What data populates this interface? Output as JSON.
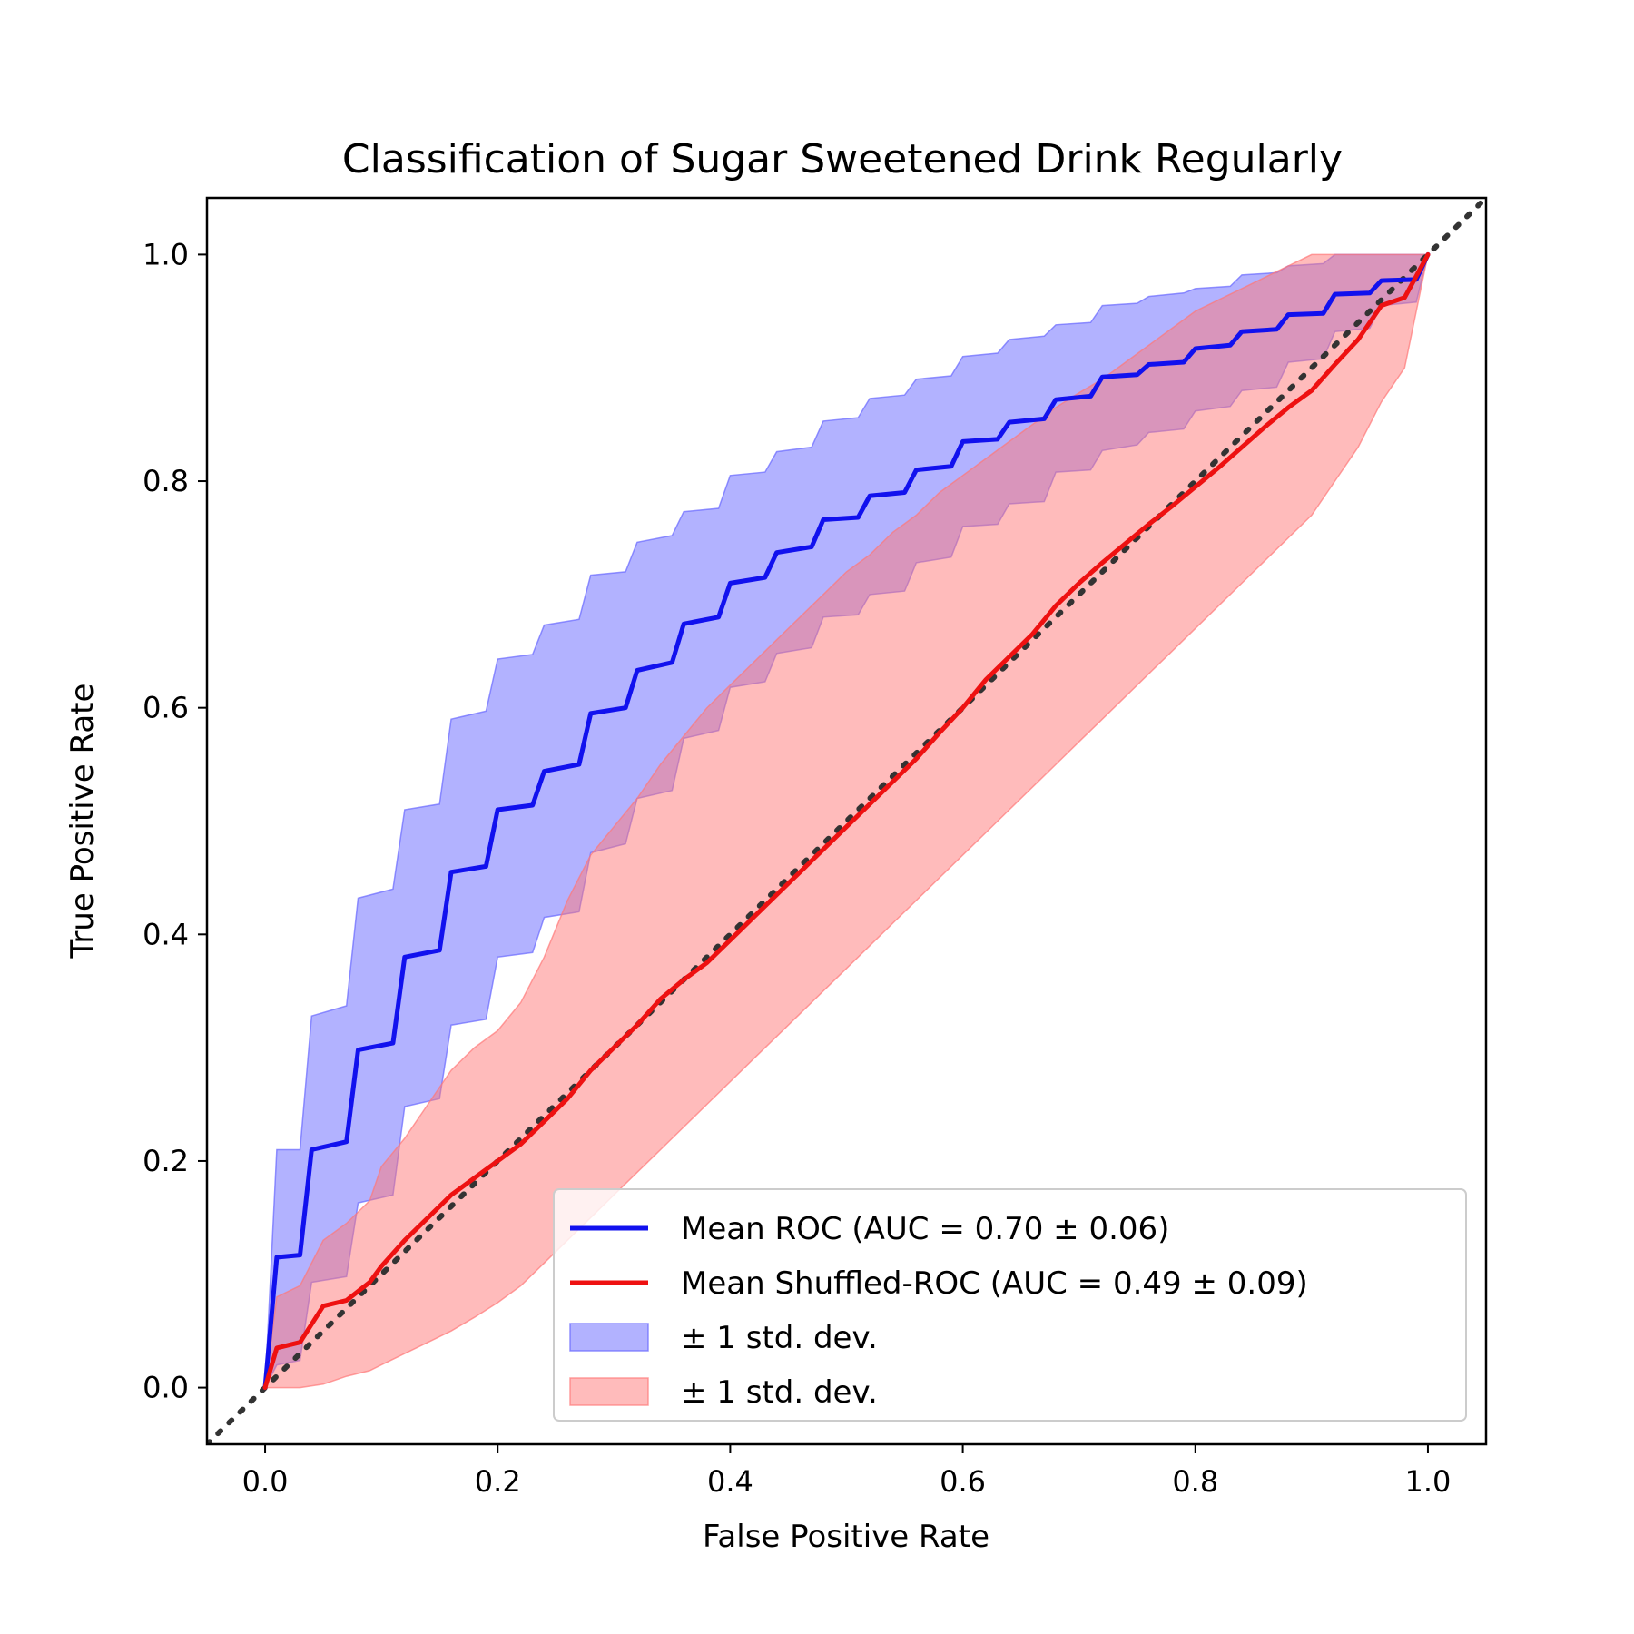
{
  "chart_data": {
    "type": "line",
    "title": "Classification of Sugar Sweetened Drink Regularly",
    "xlabel": "False Positive Rate",
    "ylabel": "True Positive Rate",
    "xlim": [
      -0.05,
      1.05
    ],
    "ylim": [
      -0.05,
      1.05
    ],
    "xticks": [
      0.0,
      0.2,
      0.4,
      0.6,
      0.8,
      1.0
    ],
    "yticks": [
      0.0,
      0.2,
      0.4,
      0.6,
      0.8,
      1.0
    ],
    "tick_labels": [
      "0.0",
      "0.2",
      "0.4",
      "0.6",
      "0.8",
      "1.0"
    ],
    "grid": false,
    "legend_position": "lower-right",
    "chance_line": {
      "x": [
        -0.05,
        1.05
      ],
      "y": [
        -0.05,
        1.05
      ],
      "style": "dotted",
      "color": "#333333"
    },
    "series": [
      {
        "name": "Mean ROC (AUC = 0.70 ± 0.06)",
        "kind": "line",
        "color": "#1111ee",
        "x": [
          0.0,
          0.01,
          0.03,
          0.04,
          0.07,
          0.08,
          0.11,
          0.12,
          0.15,
          0.16,
          0.19,
          0.2,
          0.23,
          0.24,
          0.27,
          0.28,
          0.31,
          0.32,
          0.35,
          0.36,
          0.39,
          0.4,
          0.43,
          0.44,
          0.47,
          0.48,
          0.51,
          0.52,
          0.55,
          0.56,
          0.59,
          0.6,
          0.63,
          0.64,
          0.67,
          0.68,
          0.71,
          0.72,
          0.75,
          0.76,
          0.79,
          0.8,
          0.83,
          0.84,
          0.87,
          0.88,
          0.91,
          0.92,
          0.95,
          0.96,
          0.99,
          1.0
        ],
        "y": [
          0.0,
          0.115,
          0.117,
          0.21,
          0.217,
          0.298,
          0.304,
          0.38,
          0.386,
          0.455,
          0.46,
          0.51,
          0.514,
          0.544,
          0.55,
          0.595,
          0.6,
          0.633,
          0.64,
          0.674,
          0.68,
          0.71,
          0.715,
          0.737,
          0.742,
          0.766,
          0.768,
          0.787,
          0.79,
          0.81,
          0.813,
          0.835,
          0.837,
          0.852,
          0.855,
          0.872,
          0.875,
          0.892,
          0.894,
          0.903,
          0.905,
          0.917,
          0.92,
          0.932,
          0.934,
          0.947,
          0.948,
          0.965,
          0.966,
          0.977,
          0.978,
          1.0
        ]
      },
      {
        "name": "Mean Shuffled-ROC (AUC = 0.49 ± 0.09)",
        "kind": "line",
        "color": "#ee1111",
        "x": [
          0.0,
          0.01,
          0.03,
          0.05,
          0.07,
          0.09,
          0.1,
          0.12,
          0.14,
          0.16,
          0.18,
          0.2,
          0.22,
          0.24,
          0.26,
          0.28,
          0.3,
          0.32,
          0.34,
          0.36,
          0.38,
          0.4,
          0.42,
          0.44,
          0.46,
          0.48,
          0.5,
          0.52,
          0.54,
          0.56,
          0.58,
          0.6,
          0.62,
          0.64,
          0.66,
          0.68,
          0.7,
          0.72,
          0.74,
          0.76,
          0.78,
          0.8,
          0.82,
          0.84,
          0.86,
          0.88,
          0.9,
          0.92,
          0.94,
          0.96,
          0.98,
          1.0
        ],
        "y": [
          0.0,
          0.035,
          0.04,
          0.072,
          0.077,
          0.093,
          0.107,
          0.13,
          0.15,
          0.17,
          0.185,
          0.2,
          0.215,
          0.235,
          0.255,
          0.28,
          0.3,
          0.32,
          0.343,
          0.36,
          0.375,
          0.395,
          0.415,
          0.435,
          0.455,
          0.475,
          0.495,
          0.515,
          0.535,
          0.555,
          0.578,
          0.6,
          0.625,
          0.645,
          0.665,
          0.69,
          0.71,
          0.728,
          0.745,
          0.762,
          0.778,
          0.795,
          0.812,
          0.83,
          0.848,
          0.865,
          0.88,
          0.903,
          0.925,
          0.955,
          0.962,
          1.0
        ]
      },
      {
        "name": "± 1 std. dev.",
        "kind": "band",
        "color": "#6666ff",
        "x": [
          0.0,
          0.01,
          0.03,
          0.04,
          0.07,
          0.08,
          0.11,
          0.12,
          0.15,
          0.16,
          0.19,
          0.2,
          0.23,
          0.24,
          0.27,
          0.28,
          0.31,
          0.32,
          0.35,
          0.36,
          0.39,
          0.4,
          0.43,
          0.44,
          0.47,
          0.48,
          0.51,
          0.52,
          0.55,
          0.56,
          0.59,
          0.6,
          0.63,
          0.64,
          0.67,
          0.68,
          0.71,
          0.72,
          0.75,
          0.76,
          0.79,
          0.8,
          0.83,
          0.84,
          0.87,
          0.88,
          0.91,
          0.92,
          0.95,
          0.96,
          0.99,
          1.0
        ],
        "upper": [
          0.0,
          0.21,
          0.21,
          0.328,
          0.337,
          0.432,
          0.44,
          0.51,
          0.515,
          0.59,
          0.597,
          0.643,
          0.647,
          0.673,
          0.678,
          0.717,
          0.72,
          0.746,
          0.752,
          0.773,
          0.776,
          0.805,
          0.808,
          0.826,
          0.83,
          0.853,
          0.856,
          0.873,
          0.876,
          0.89,
          0.893,
          0.91,
          0.913,
          0.925,
          0.928,
          0.938,
          0.94,
          0.955,
          0.957,
          0.963,
          0.966,
          0.97,
          0.972,
          0.982,
          0.984,
          0.99,
          0.992,
          1.0,
          1.0,
          1.0,
          1.0,
          1.0
        ],
        "lower": [
          0.0,
          0.02,
          0.024,
          0.093,
          0.098,
          0.163,
          0.17,
          0.248,
          0.255,
          0.32,
          0.325,
          0.38,
          0.384,
          0.415,
          0.42,
          0.472,
          0.48,
          0.52,
          0.527,
          0.573,
          0.58,
          0.618,
          0.623,
          0.648,
          0.653,
          0.68,
          0.682,
          0.7,
          0.703,
          0.728,
          0.733,
          0.76,
          0.762,
          0.78,
          0.782,
          0.808,
          0.81,
          0.827,
          0.832,
          0.843,
          0.846,
          0.862,
          0.866,
          0.88,
          0.883,
          0.905,
          0.908,
          0.932,
          0.935,
          0.955,
          0.958,
          1.0
        ]
      },
      {
        "name": "± 1 std. dev.",
        "kind": "band",
        "color": "#ff7777",
        "x": [
          0.0,
          0.01,
          0.03,
          0.05,
          0.07,
          0.09,
          0.1,
          0.12,
          0.14,
          0.16,
          0.18,
          0.2,
          0.22,
          0.24,
          0.26,
          0.28,
          0.3,
          0.32,
          0.34,
          0.36,
          0.38,
          0.4,
          0.42,
          0.44,
          0.46,
          0.48,
          0.5,
          0.52,
          0.54,
          0.56,
          0.58,
          0.6,
          0.62,
          0.64,
          0.66,
          0.68,
          0.7,
          0.72,
          0.74,
          0.76,
          0.78,
          0.8,
          0.82,
          0.84,
          0.86,
          0.88,
          0.9,
          0.92,
          0.94,
          0.96,
          0.98,
          1.0
        ],
        "upper": [
          0.0,
          0.08,
          0.09,
          0.13,
          0.145,
          0.165,
          0.195,
          0.22,
          0.25,
          0.28,
          0.3,
          0.315,
          0.34,
          0.38,
          0.43,
          0.47,
          0.495,
          0.52,
          0.55,
          0.575,
          0.6,
          0.62,
          0.64,
          0.66,
          0.68,
          0.7,
          0.72,
          0.735,
          0.755,
          0.77,
          0.79,
          0.805,
          0.82,
          0.835,
          0.85,
          0.865,
          0.878,
          0.89,
          0.905,
          0.92,
          0.935,
          0.95,
          0.96,
          0.97,
          0.98,
          0.99,
          1.0,
          1.0,
          1.0,
          1.0,
          1.0,
          1.0
        ],
        "lower": [
          0.0,
          0.0,
          0.0,
          0.003,
          0.01,
          0.015,
          0.02,
          0.03,
          0.04,
          0.05,
          0.062,
          0.075,
          0.09,
          0.11,
          0.13,
          0.15,
          0.17,
          0.19,
          0.21,
          0.23,
          0.25,
          0.27,
          0.29,
          0.31,
          0.33,
          0.35,
          0.37,
          0.39,
          0.41,
          0.43,
          0.45,
          0.47,
          0.49,
          0.51,
          0.53,
          0.55,
          0.57,
          0.59,
          0.61,
          0.63,
          0.65,
          0.67,
          0.69,
          0.71,
          0.73,
          0.75,
          0.77,
          0.8,
          0.83,
          0.87,
          0.9,
          1.0
        ]
      }
    ],
    "legend": [
      {
        "label": "Mean ROC (AUC = 0.70 ± 0.06)",
        "kind": "line",
        "color": "#1111ee"
      },
      {
        "label": "Mean Shuffled-ROC (AUC = 0.49 ± 0.09)",
        "kind": "line",
        "color": "#ee1111"
      },
      {
        "label": "± 1 std. dev.",
        "kind": "patch",
        "color": "#6666ff"
      },
      {
        "label": "± 1 std. dev.",
        "kind": "patch",
        "color": "#ff7777"
      }
    ]
  }
}
